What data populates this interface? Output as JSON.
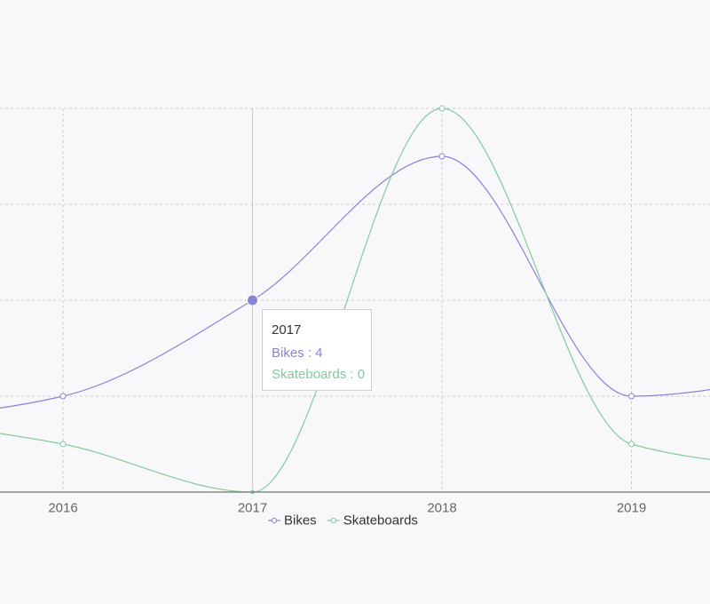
{
  "chart_data": {
    "type": "line",
    "curve": "smooth",
    "x": [
      "2016",
      "2017",
      "2018",
      "2019"
    ],
    "series": [
      {
        "name": "Bikes",
        "color": "#8884d8",
        "values": [
          2,
          4,
          7,
          2
        ]
      },
      {
        "name": "Skateboards",
        "color": "#82ca9d",
        "values": [
          1,
          0,
          8,
          1
        ]
      }
    ],
    "edge_values": {
      "Bikes": {
        "left": 1.4,
        "right": 2.5
      },
      "Skateboards": {
        "left": 1.6,
        "right": 0.4
      }
    },
    "ylim": [
      0,
      8
    ],
    "yticks": [
      0,
      2,
      4,
      6,
      8
    ],
    "grid": true,
    "legend_position": "bottom-center",
    "active_index": 1
  },
  "tooltip": {
    "title": "2017",
    "rows": [
      {
        "label": "Bikes : 4",
        "color": "#8884d8"
      },
      {
        "label": "Skateboards : 0",
        "color": "#82ca9d"
      }
    ]
  }
}
